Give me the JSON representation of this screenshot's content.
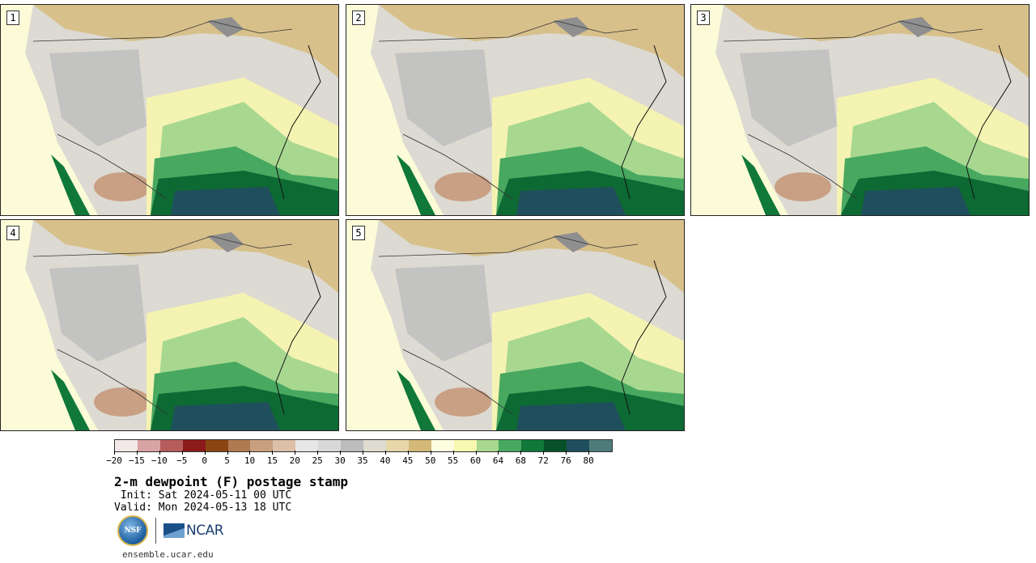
{
  "panels": [
    {
      "label": "1"
    },
    {
      "label": "2"
    },
    {
      "label": "3"
    },
    {
      "label": "4"
    },
    {
      "label": "5"
    }
  ],
  "colorbar": {
    "colors": [
      "#f4e8e8",
      "#d9a3a3",
      "#b65c5c",
      "#8c1a1a",
      "#8b4513",
      "#b07a50",
      "#c8a080",
      "#dcc0a8",
      "#e6e6e6",
      "#d8d8d8",
      "#bcbcbc",
      "#dedcd0",
      "#e6d6a8",
      "#d4b878",
      "#fdfde0",
      "#f8f8b0",
      "#a8d890",
      "#48a860",
      "#107838",
      "#06502a",
      "#1f4f5c",
      "#4f7b7b"
    ],
    "tick_labels": [
      "−20",
      "−15",
      "−10",
      "−5",
      "0",
      "5",
      "10",
      "15",
      "20",
      "25",
      "30",
      "35",
      "40",
      "45",
      "50",
      "55",
      "60",
      "64",
      "68",
      "72",
      "76",
      "80"
    ]
  },
  "title": "2-m dewpoint (F) postage stamp",
  "init": " Init: Sat 2024-05-11 00 UTC",
  "valid": "Valid: Mon 2024-05-13 18 UTC",
  "logos": {
    "nsf": "NSF",
    "ncar": "NCAR"
  },
  "footer_url": "ensemble.ucar.edu"
}
